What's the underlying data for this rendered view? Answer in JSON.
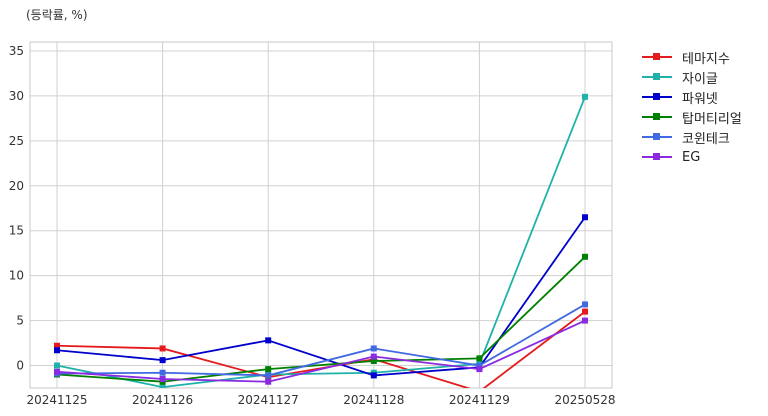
{
  "chart_data": {
    "type": "line",
    "unit_label": "(등락률, %)",
    "categories": [
      "20241125",
      "20241126",
      "20241127",
      "20241128",
      "20241129",
      "20250528"
    ],
    "ylim": [
      -2.5,
      36
    ],
    "yticks": [
      0,
      5,
      10,
      15,
      20,
      25,
      30,
      35
    ],
    "grid": true,
    "legend_position": "outside-top-right",
    "series": [
      {
        "name": "테마지수",
        "color": "#e41a1c",
        "values": [
          2.2,
          1.9,
          -1.3,
          0.7,
          -2.9,
          6.0
        ]
      },
      {
        "name": "자이글",
        "color": "#20b2aa",
        "values": [
          0.0,
          -2.4,
          -1.0,
          -0.8,
          0.2,
          29.9
        ]
      },
      {
        "name": "파워넷",
        "color": "#0000cd",
        "values": [
          1.7,
          0.6,
          2.8,
          -1.1,
          -0.2,
          16.5
        ]
      },
      {
        "name": "탑머티리얼",
        "color": "#008000",
        "values": [
          -1.0,
          -1.8,
          -0.4,
          0.5,
          0.8,
          12.1
        ]
      },
      {
        "name": "코윈테크",
        "color": "#4169e1",
        "values": [
          -0.9,
          -0.8,
          -1.1,
          1.9,
          0.0,
          6.8
        ]
      },
      {
        "name": "EG",
        "color": "#8a2be2",
        "values": [
          -0.7,
          -1.5,
          -1.8,
          1.0,
          -0.4,
          5.0
        ]
      }
    ]
  }
}
